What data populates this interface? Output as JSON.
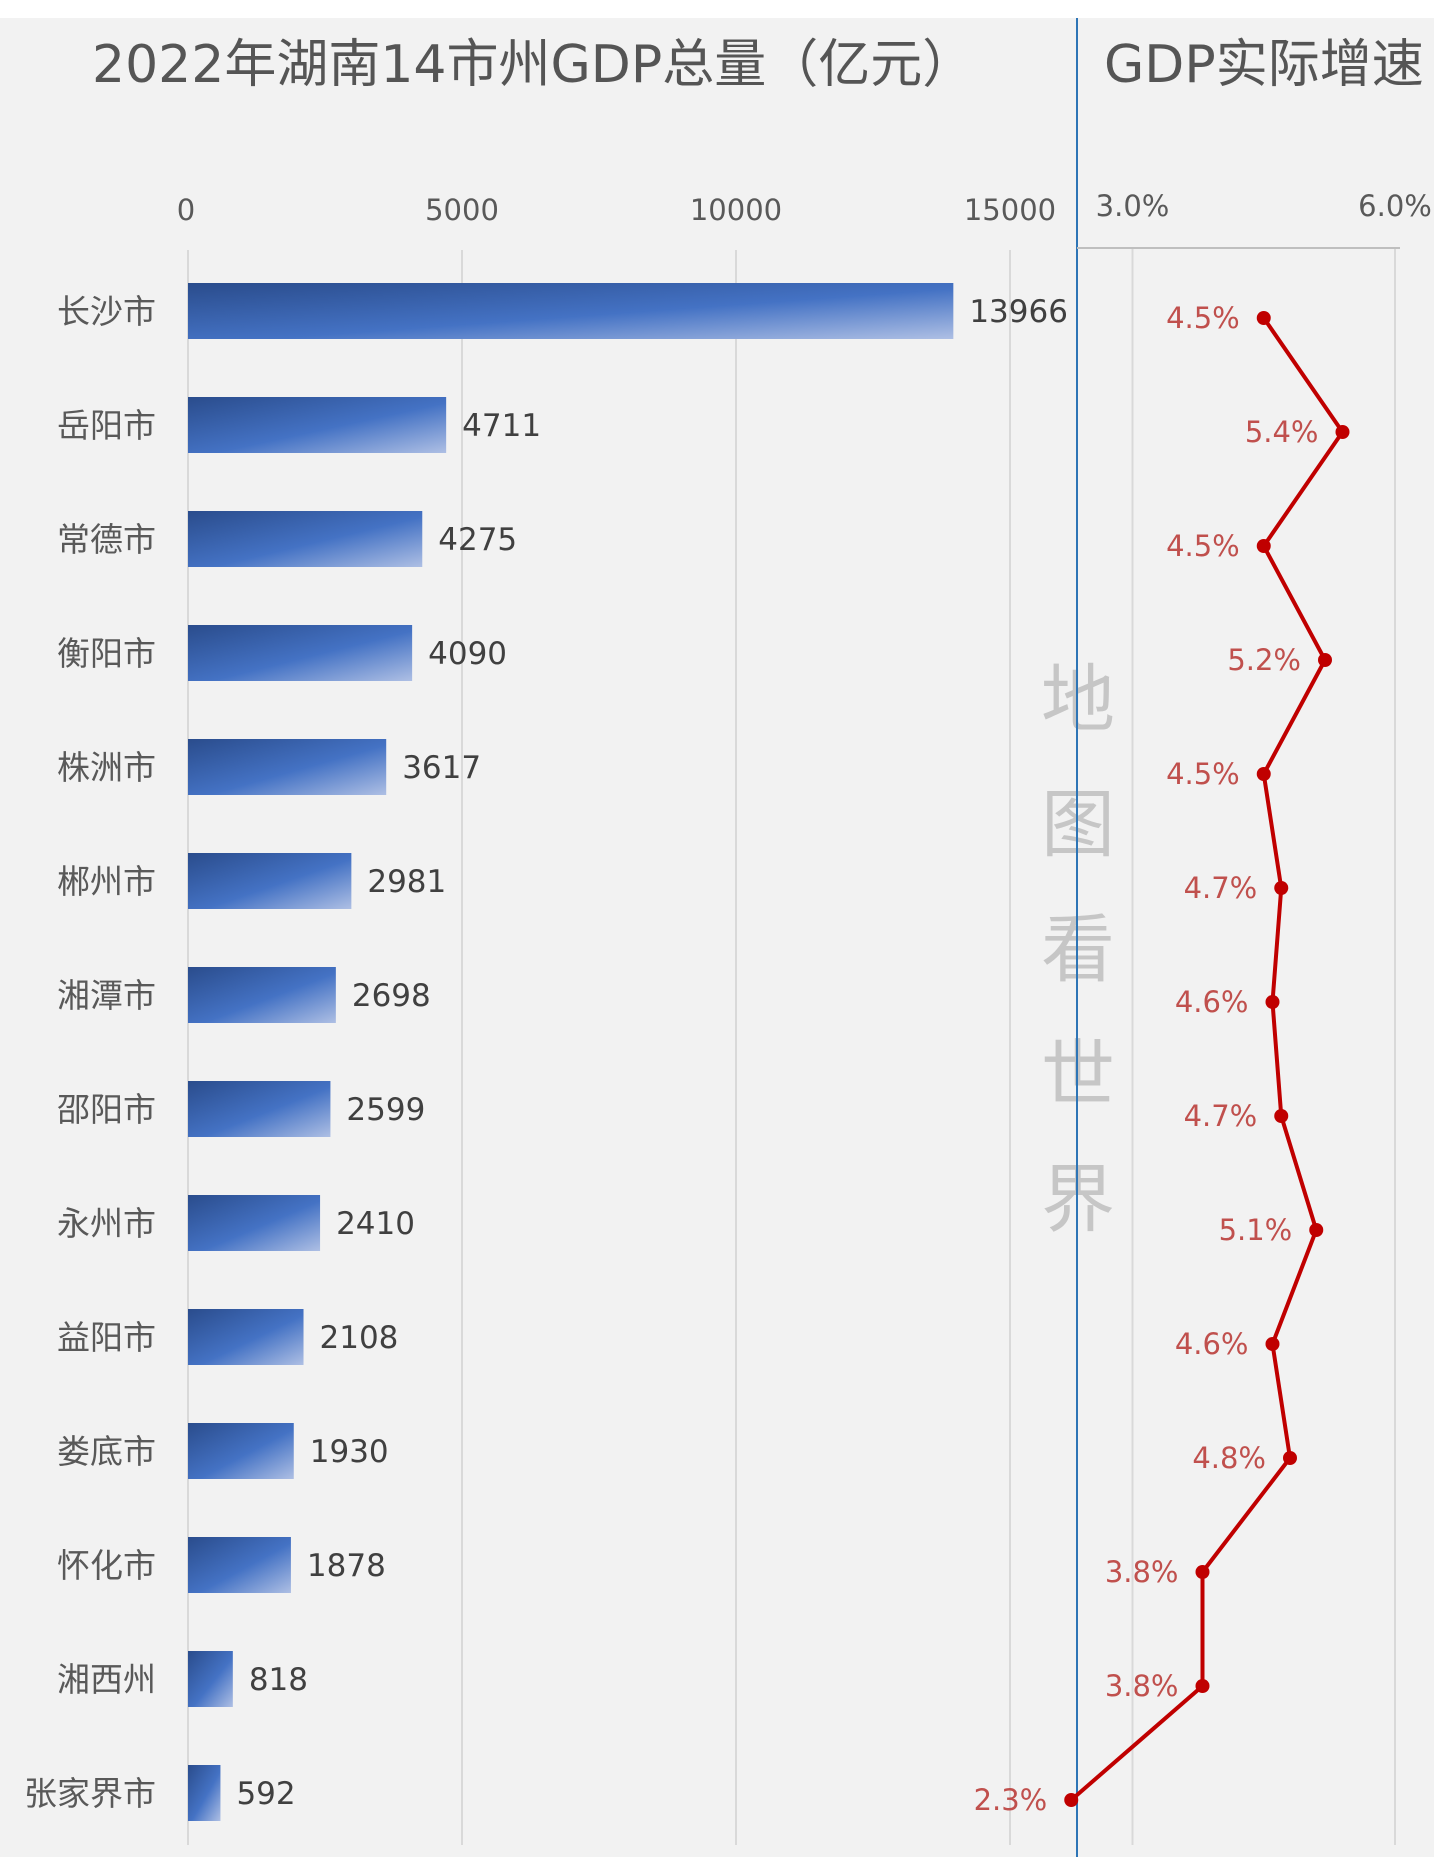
{
  "chart_data": [
    {
      "type": "bar",
      "title": "2022年湖南14市州GDP总量（亿元）",
      "orientation": "horizontal",
      "xlim": [
        0,
        15000
      ],
      "xticks": [
        "0",
        "5000",
        "10000",
        "15000"
      ],
      "grid": true,
      "categories": [
        "长沙市",
        "岳阳市",
        "常德市",
        "衡阳市",
        "株洲市",
        "郴州市",
        "湘潭市",
        "邵阳市",
        "永州市",
        "益阳市",
        "娄底市",
        "怀化市",
        "湘西州",
        "张家界市"
      ],
      "values": [
        13966,
        4711,
        4275,
        4090,
        3617,
        2981,
        2698,
        2599,
        2410,
        2108,
        1930,
        1878,
        818,
        592
      ],
      "value_labels": [
        "13966",
        "4711",
        "4275",
        "4090",
        "3617",
        "2981",
        "2698",
        "2599",
        "2410",
        "2108",
        "1930",
        "1878",
        "818",
        "592"
      ],
      "bar_color": "#4472c4"
    },
    {
      "type": "line",
      "title": "GDP实际增速",
      "orientation": "vertical",
      "xlim": [
        0.0,
        6.0
      ],
      "xticks": [
        "3.0%",
        "6.0%"
      ],
      "grid": true,
      "categories": [
        "长沙市",
        "岳阳市",
        "常德市",
        "衡阳市",
        "株洲市",
        "郴州市",
        "湘潭市",
        "邵阳市",
        "永州市",
        "益阳市",
        "娄底市",
        "怀化市",
        "湘西州",
        "张家界市"
      ],
      "values": [
        4.5,
        5.4,
        4.5,
        5.2,
        4.5,
        4.7,
        4.6,
        4.7,
        5.1,
        4.6,
        4.8,
        3.8,
        3.8,
        2.3
      ],
      "value_labels": [
        "4.5%",
        "5.4%",
        "4.5%",
        "5.2%",
        "4.5%",
        "4.7%",
        "4.6%",
        "4.7%",
        "5.1%",
        "4.6%",
        "4.8%",
        "3.8%",
        "3.8%",
        "2.3%"
      ],
      "line_color": "#c00000"
    }
  ],
  "watermark": "地图看世界",
  "colors": {
    "background": "#f2f2f2",
    "divider": "#2e75b6"
  }
}
